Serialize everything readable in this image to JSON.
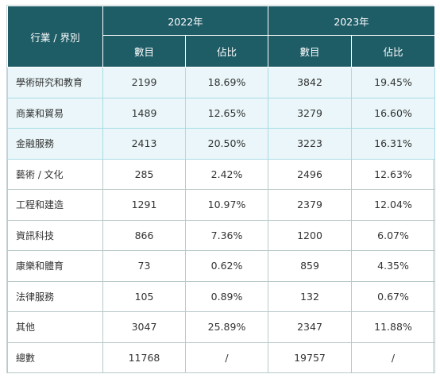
{
  "table": {
    "category_header": "行業 / 界別",
    "years": [
      "2022年",
      "2023年"
    ],
    "sub_headers": [
      "數目",
      "佔比",
      "數目",
      "佔比"
    ],
    "rows": [
      {
        "label": "學術研究和教育",
        "c1": "2199",
        "c2": "18.69%",
        "c3": "3842",
        "c4": "19.45%",
        "highlight": true
      },
      {
        "label": "商業和貿易",
        "c1": "1489",
        "c2": "12.65%",
        "c3": "3279",
        "c4": "16.60%",
        "highlight": true
      },
      {
        "label": "金融服務",
        "c1": "2413",
        "c2": "20.50%",
        "c3": "3223",
        "c4": "16.31%",
        "highlight": true
      },
      {
        "label": "藝術 / 文化",
        "c1": "285",
        "c2": "2.42%",
        "c3": "2496",
        "c4": "12.63%",
        "highlight": false
      },
      {
        "label": "工程和建造",
        "c1": "1291",
        "c2": "10.97%",
        "c3": "2379",
        "c4": "12.04%",
        "highlight": false
      },
      {
        "label": "資訊科技",
        "c1": "866",
        "c2": "7.36%",
        "c3": "1200",
        "c4": "6.07%",
        "highlight": false
      },
      {
        "label": "康樂和體育",
        "c1": "73",
        "c2": "0.62%",
        "c3": "859",
        "c4": "4.35%",
        "highlight": false
      },
      {
        "label": "法律服務",
        "c1": "105",
        "c2": "0.89%",
        "c3": "132",
        "c4": "0.67%",
        "highlight": false
      },
      {
        "label": "其他",
        "c1": "3047",
        "c2": "25.89%",
        "c3": "2347",
        "c4": "11.88%",
        "highlight": false
      },
      {
        "label": "總數",
        "c1": "11768",
        "c2": "/",
        "c3": "19757",
        "c4": "/",
        "highlight": false
      }
    ]
  },
  "colors": {
    "header_bg": "#1e5c66",
    "highlight_bg": "#eaf6f9"
  }
}
